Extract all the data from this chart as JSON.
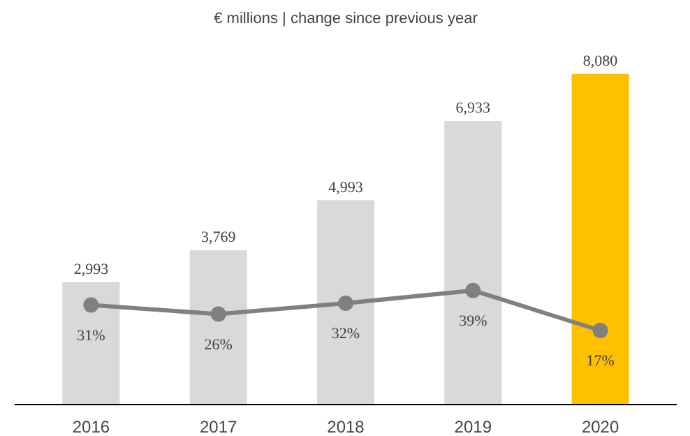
{
  "chart_data": {
    "type": "bar",
    "title": "€ millions | change since previous year",
    "categories": [
      "2016",
      "2017",
      "2018",
      "2019",
      "2020"
    ],
    "series": [
      {
        "colors": [
          "#d9d9d9",
          "#d9d9d9",
          "#d9d9d9",
          "#d9d9d9",
          "#ffc000"
        ],
        "values": [
          2993,
          3769,
          4993,
          6933,
          8080
        ],
        "value_labels": [
          "2,993",
          "3,769",
          "4,993",
          "6,933",
          "8,080"
        ]
      },
      {
        "type": "line",
        "axis": "y2",
        "color": "#808080",
        "values": [
          31,
          26,
          32,
          39,
          17
        ],
        "value_labels": [
          "31%",
          "26%",
          "32%",
          "39%",
          "17%"
        ]
      }
    ],
    "marker": "circle",
    "line_style": "solid",
    "grid": false
  }
}
